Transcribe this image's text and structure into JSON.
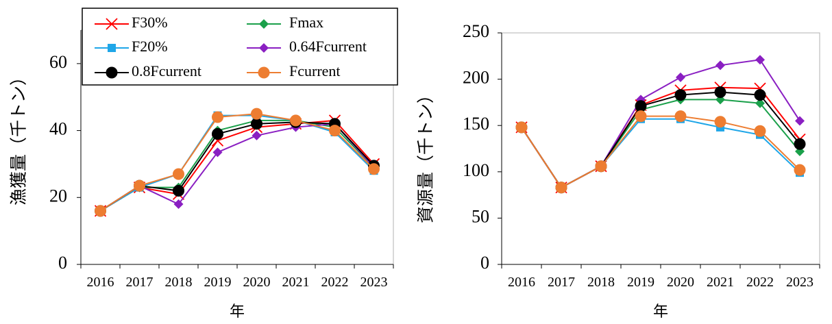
{
  "chart_data": [
    {
      "type": "line",
      "ylabel": "漁獲量（千トン）",
      "xlabel": "年",
      "categories": [
        "2016",
        "2017",
        "2018",
        "2019",
        "2020",
        "2021",
        "2022",
        "2023"
      ],
      "ylim": [
        0,
        70
      ],
      "yticks": [
        0,
        20,
        40,
        60
      ],
      "grid": false,
      "legend": "top-left",
      "series": [
        {
          "name": "F30%",
          "values": [
            16,
            23,
            21,
            37,
            41,
            42,
            43,
            30
          ]
        },
        {
          "name": "Fmax",
          "values": [
            16,
            23,
            23,
            40,
            43,
            43,
            41,
            29
          ]
        },
        {
          "name": "F20%",
          "values": [
            16,
            23,
            27,
            44.5,
            44.5,
            43,
            39.5,
            28
          ]
        },
        {
          "name": "0.64Fcurrent",
          "values": [
            16,
            23.5,
            18,
            33.5,
            38.5,
            41,
            42,
            29
          ]
        },
        {
          "name": "0.8Fcurrent",
          "values": [
            16,
            23.5,
            22,
            39,
            42,
            42.5,
            42,
            29.5
          ]
        },
        {
          "name": "Fcurrent",
          "values": [
            16,
            23.5,
            27,
            44,
            45,
            43,
            40,
            28.5
          ]
        }
      ]
    },
    {
      "type": "line",
      "ylabel": "資源量（千トン）",
      "xlabel": "年",
      "categories": [
        "2016",
        "2017",
        "2018",
        "2019",
        "2020",
        "2021",
        "2022",
        "2023"
      ],
      "ylim": [
        0,
        250
      ],
      "yticks": [
        0,
        50,
        100,
        150,
        200,
        250
      ],
      "grid": false,
      "series": [
        {
          "name": "F30%",
          "values": [
            148,
            83,
            106,
            172,
            188,
            191,
            190,
            135
          ]
        },
        {
          "name": "Fmax",
          "values": [
            148,
            83,
            106,
            167,
            178,
            178,
            174,
            122
          ]
        },
        {
          "name": "F20%",
          "values": [
            148,
            83,
            106,
            157,
            157,
            148,
            140,
            99
          ]
        },
        {
          "name": "0.64Fcurrent",
          "values": [
            148,
            83,
            106,
            178,
            202,
            215,
            221,
            155
          ]
        },
        {
          "name": "0.8Fcurrent",
          "values": [
            148,
            83,
            106,
            171,
            183,
            186,
            183,
            130
          ]
        },
        {
          "name": "Fcurrent",
          "values": [
            148,
            83,
            106,
            160,
            160,
            154,
            144,
            102
          ]
        }
      ]
    }
  ],
  "styles": {
    "F30%": {
      "color": "#ff0000",
      "marker": "x-icon"
    },
    "Fmax": {
      "color": "#1aa04a",
      "marker": "diamond-icon"
    },
    "F20%": {
      "color": "#1fa6e8",
      "marker": "square-icon"
    },
    "0.64Fcurrent": {
      "color": "#8a1fc2",
      "marker": "diamond-icon"
    },
    "0.8Fcurrent": {
      "color": "#000000",
      "marker": "circle-icon"
    },
    "Fcurrent": {
      "color": "#ed7d31",
      "marker": "circle-icon"
    }
  },
  "legend_order": [
    "F30%",
    "Fmax",
    "F20%",
    "0.64Fcurrent",
    "0.8Fcurrent",
    "Fcurrent"
  ]
}
